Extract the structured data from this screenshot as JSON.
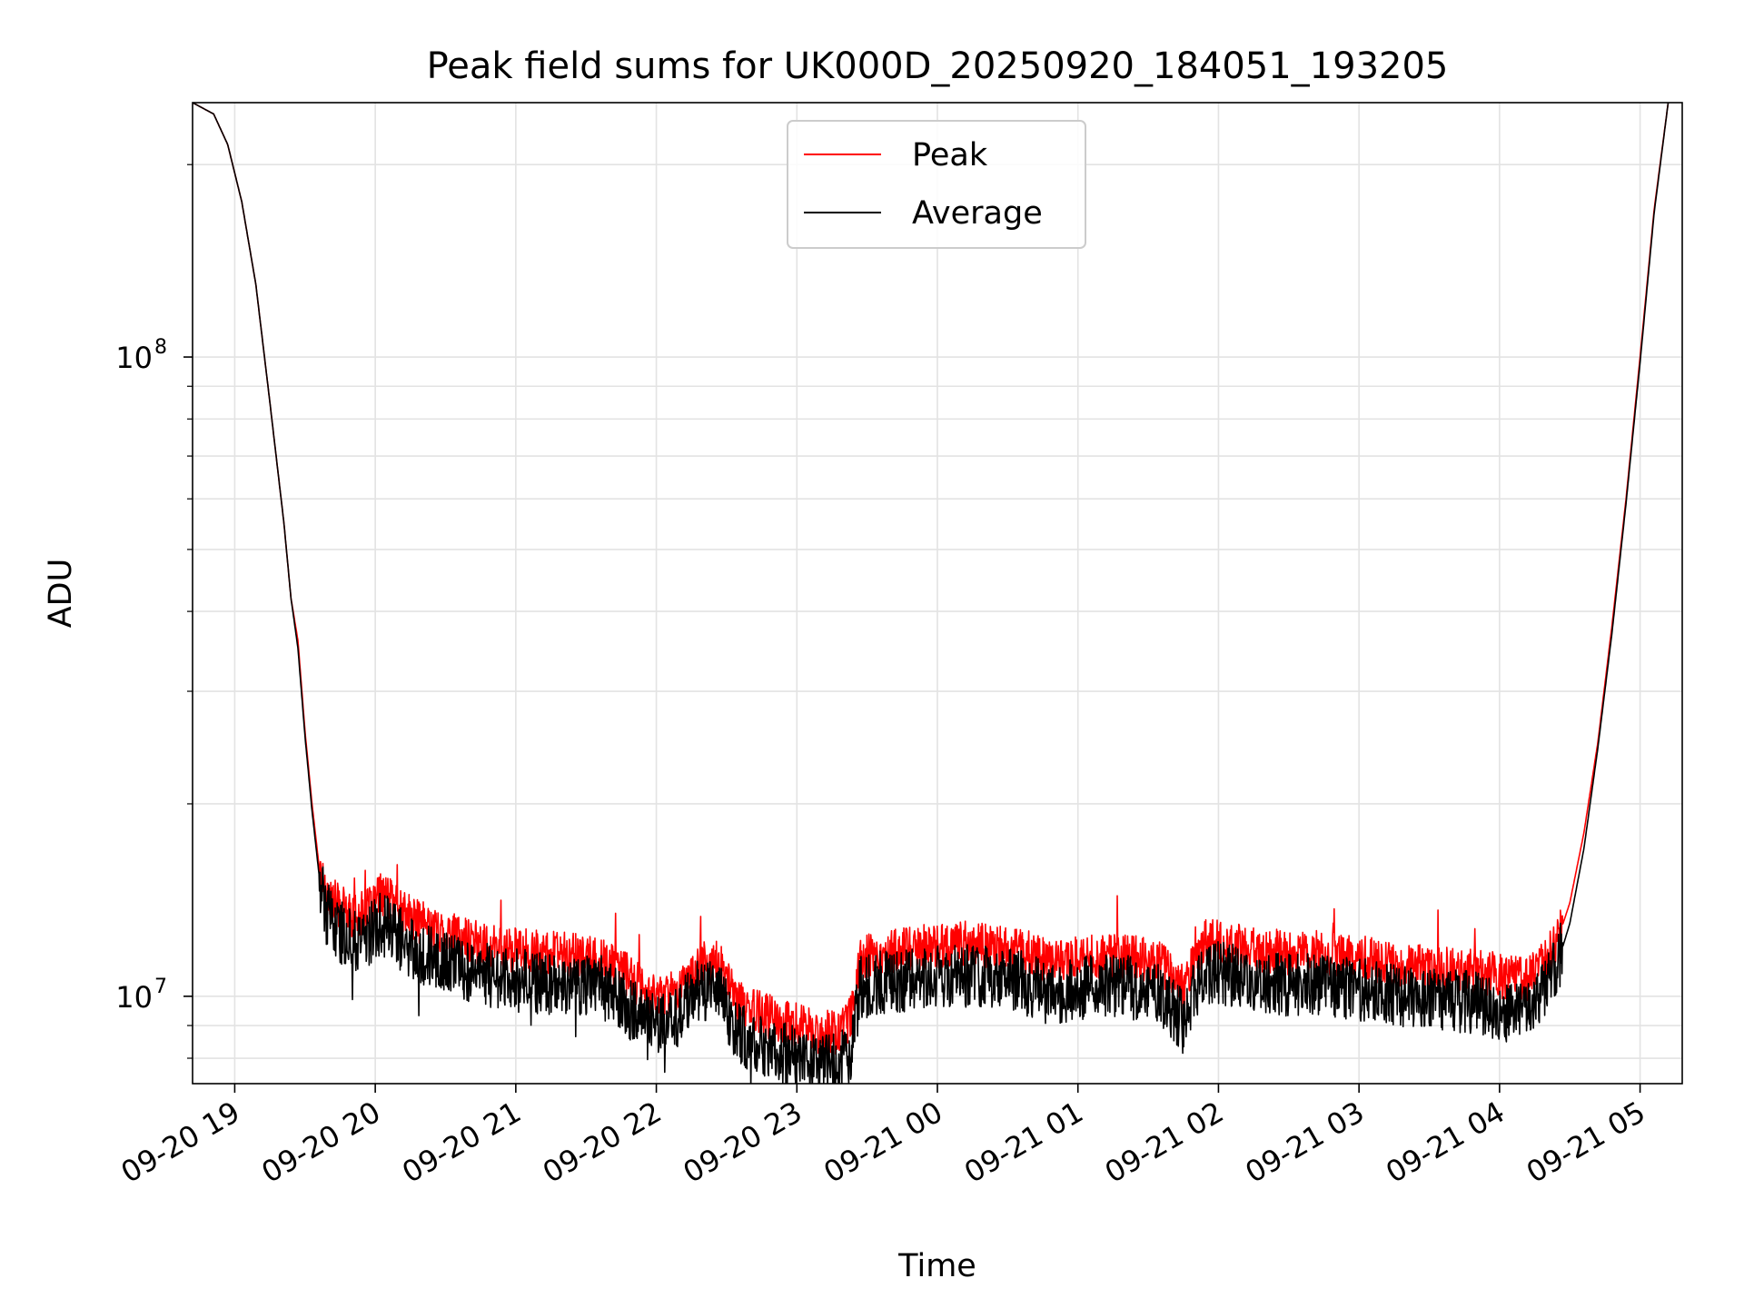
{
  "chart_data": {
    "type": "line",
    "title": "Peak field sums for UK000D_20250920_184051_193205",
    "xlabel": "Time",
    "ylabel": "ADU",
    "yscale": "log",
    "xlim_hours": [
      18.7,
      29.3
    ],
    "ylim": [
      7300000,
      250000000
    ],
    "grid": true,
    "legend": {
      "position": "top-center",
      "entries": [
        "Peak",
        "Average"
      ]
    },
    "x_ticks": [
      {
        "h": 19,
        "label": "09-20 19"
      },
      {
        "h": 20,
        "label": "09-20 20"
      },
      {
        "h": 21,
        "label": "09-20 21"
      },
      {
        "h": 22,
        "label": "09-20 22"
      },
      {
        "h": 23,
        "label": "09-20 23"
      },
      {
        "h": 24,
        "label": "09-21 00"
      },
      {
        "h": 25,
        "label": "09-21 01"
      },
      {
        "h": 26,
        "label": "09-21 02"
      },
      {
        "h": 27,
        "label": "09-21 03"
      },
      {
        "h": 28,
        "label": "09-21 04"
      },
      {
        "h": 29,
        "label": "09-21 05"
      }
    ],
    "y_ticks": [
      {
        "value": 10000000,
        "base": "10",
        "exp": "7"
      },
      {
        "value": 100000000,
        "base": "10",
        "exp": "8"
      }
    ],
    "series": [
      {
        "name": "Peak",
        "color": "#ff0000",
        "points": [
          [
            18.7,
            250000000
          ],
          [
            18.85,
            240000000
          ],
          [
            18.95,
            215000000
          ],
          [
            19.05,
            175000000
          ],
          [
            19.15,
            130000000
          ],
          [
            19.25,
            85000000
          ],
          [
            19.35,
            55000000
          ],
          [
            19.4,
            42000000
          ],
          [
            19.45,
            36000000
          ],
          [
            19.5,
            26000000
          ],
          [
            19.55,
            20000000
          ],
          [
            19.6,
            16000000
          ],
          [
            19.65,
            14500000
          ],
          [
            19.75,
            13800000
          ],
          [
            19.85,
            13300000
          ],
          [
            19.95,
            13600000
          ],
          [
            20.05,
            14500000
          ],
          [
            20.2,
            13500000
          ],
          [
            20.4,
            12800000
          ],
          [
            20.6,
            12400000
          ],
          [
            20.8,
            12000000
          ],
          [
            21.0,
            11800000
          ],
          [
            21.2,
            11700000
          ],
          [
            21.4,
            11600000
          ],
          [
            21.6,
            11400000
          ],
          [
            21.75,
            11000000
          ],
          [
            21.9,
            10300000
          ],
          [
            22.0,
            10000000
          ],
          [
            22.15,
            10300000
          ],
          [
            22.3,
            11200000
          ],
          [
            22.45,
            11300000
          ],
          [
            22.55,
            10000000
          ],
          [
            22.7,
            9500000
          ],
          [
            22.85,
            9200000
          ],
          [
            23.0,
            9000000
          ],
          [
            23.15,
            8800000
          ],
          [
            23.3,
            8800000
          ],
          [
            23.38,
            9200000
          ],
          [
            23.45,
            11500000
          ],
          [
            23.6,
            11700000
          ],
          [
            23.8,
            11900000
          ],
          [
            24.0,
            12000000
          ],
          [
            24.2,
            12100000
          ],
          [
            24.4,
            12000000
          ],
          [
            24.6,
            11800000
          ],
          [
            24.8,
            11300000
          ],
          [
            25.0,
            11500000
          ],
          [
            25.2,
            11600000
          ],
          [
            25.4,
            11500000
          ],
          [
            25.6,
            11200000
          ],
          [
            25.75,
            10300000
          ],
          [
            25.82,
            11200000
          ],
          [
            25.9,
            12200000
          ],
          [
            26.1,
            12100000
          ],
          [
            26.3,
            11800000
          ],
          [
            26.5,
            11700000
          ],
          [
            26.7,
            11700000
          ],
          [
            26.9,
            11600000
          ],
          [
            27.1,
            11400000
          ],
          [
            27.3,
            11200000
          ],
          [
            27.5,
            11100000
          ],
          [
            27.7,
            11000000
          ],
          [
            27.9,
            10900000
          ],
          [
            28.05,
            10700000
          ],
          [
            28.2,
            10600000
          ],
          [
            28.3,
            11200000
          ],
          [
            28.4,
            12000000
          ],
          [
            28.5,
            14000000
          ],
          [
            28.6,
            18000000
          ],
          [
            28.7,
            25000000
          ],
          [
            28.8,
            38000000
          ],
          [
            28.9,
            60000000
          ],
          [
            29.0,
            100000000
          ],
          [
            29.1,
            170000000
          ],
          [
            29.2,
            250000000
          ]
        ]
      },
      {
        "name": "Average",
        "color": "#000000",
        "points": [
          [
            18.7,
            250000000
          ],
          [
            18.85,
            240000000
          ],
          [
            18.95,
            215000000
          ],
          [
            19.05,
            175000000
          ],
          [
            19.15,
            130000000
          ],
          [
            19.25,
            85000000
          ],
          [
            19.35,
            55000000
          ],
          [
            19.4,
            42000000
          ],
          [
            19.45,
            35000000
          ],
          [
            19.5,
            25500000
          ],
          [
            19.55,
            19500000
          ],
          [
            19.6,
            15500000
          ],
          [
            19.65,
            13500000
          ],
          [
            19.75,
            12600000
          ],
          [
            19.85,
            12200000
          ],
          [
            19.95,
            12500000
          ],
          [
            20.05,
            13000000
          ],
          [
            20.2,
            12200000
          ],
          [
            20.4,
            11500000
          ],
          [
            20.6,
            11100000
          ],
          [
            20.8,
            10800000
          ],
          [
            21.0,
            10600000
          ],
          [
            21.2,
            10500000
          ],
          [
            21.4,
            10500000
          ],
          [
            21.6,
            10400000
          ],
          [
            21.75,
            9800000
          ],
          [
            21.9,
            9300000
          ],
          [
            22.0,
            9000000
          ],
          [
            22.15,
            9300000
          ],
          [
            22.3,
            10200000
          ],
          [
            22.45,
            10300000
          ],
          [
            22.55,
            8900000
          ],
          [
            22.7,
            8400000
          ],
          [
            22.85,
            8200000
          ],
          [
            23.0,
            8000000
          ],
          [
            23.15,
            7800000
          ],
          [
            23.3,
            7800000
          ],
          [
            23.38,
            8200000
          ],
          [
            23.45,
            10300000
          ],
          [
            23.6,
            10500000
          ],
          [
            23.8,
            10600000
          ],
          [
            24.0,
            10700000
          ],
          [
            24.2,
            10800000
          ],
          [
            24.4,
            10700000
          ],
          [
            24.6,
            10500000
          ],
          [
            24.8,
            10100000
          ],
          [
            25.0,
            10300000
          ],
          [
            25.2,
            10400000
          ],
          [
            25.4,
            10300000
          ],
          [
            25.6,
            10000000
          ],
          [
            25.75,
            9100000
          ],
          [
            25.82,
            10000000
          ],
          [
            25.9,
            10900000
          ],
          [
            26.1,
            10800000
          ],
          [
            26.3,
            10500000
          ],
          [
            26.5,
            10400000
          ],
          [
            26.7,
            10400000
          ],
          [
            26.9,
            10300000
          ],
          [
            27.1,
            10200000
          ],
          [
            27.3,
            10000000
          ],
          [
            27.5,
            9900000
          ],
          [
            27.7,
            9800000
          ],
          [
            27.9,
            9700000
          ],
          [
            28.05,
            9500000
          ],
          [
            28.2,
            9400000
          ],
          [
            28.3,
            10000000
          ],
          [
            28.4,
            11000000
          ],
          [
            28.5,
            13000000
          ],
          [
            28.6,
            17000000
          ],
          [
            28.7,
            24500000
          ],
          [
            28.8,
            37000000
          ],
          [
            28.9,
            59000000
          ],
          [
            29.0,
            98000000
          ],
          [
            29.1,
            168000000
          ],
          [
            29.2,
            250000000
          ]
        ]
      }
    ]
  }
}
